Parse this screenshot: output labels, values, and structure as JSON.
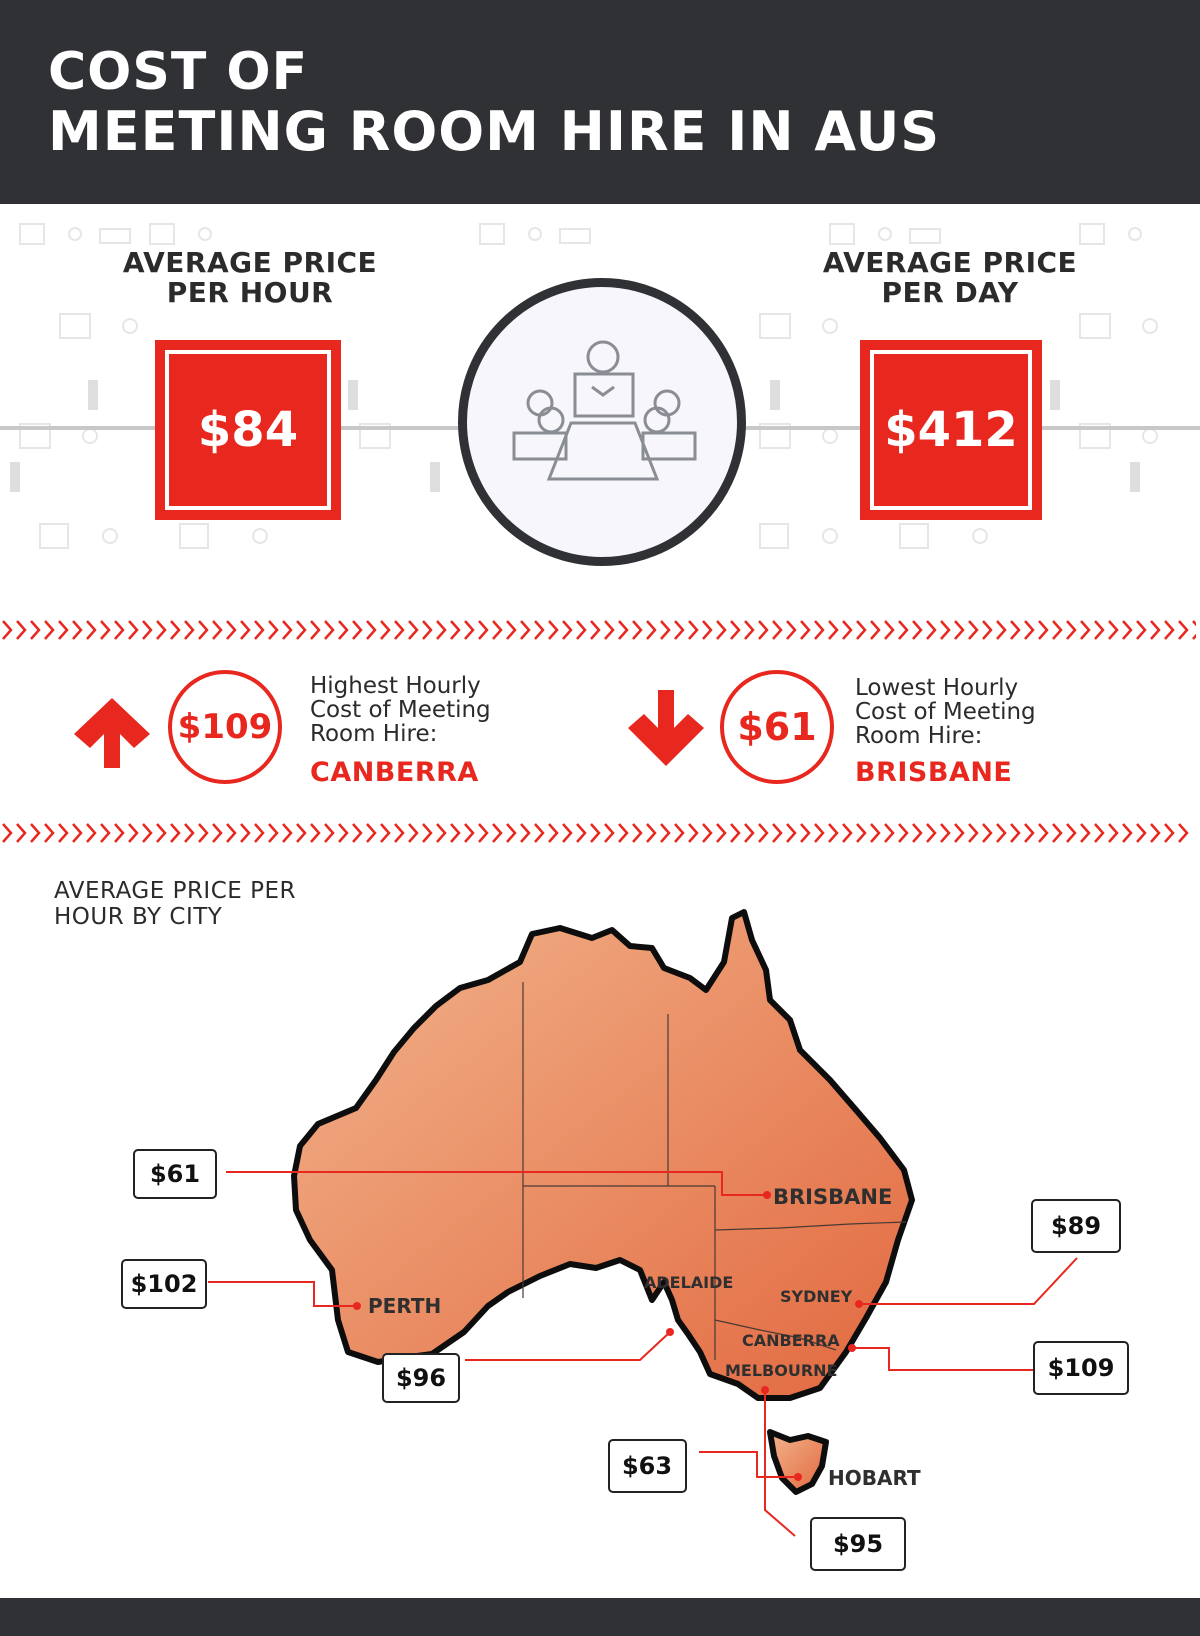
{
  "header": {
    "title_line1": "COST OF",
    "title_line2": "MEETING ROOM HIRE IN AUS"
  },
  "hourly": {
    "label_line1": "AVERAGE PRICE",
    "label_line2": "PER HOUR",
    "value": "$84"
  },
  "daily": {
    "label_line1": "AVERAGE PRICE",
    "label_line2": "PER DAY",
    "value": "$412"
  },
  "center_icon": "meeting-room-icon",
  "highest": {
    "value": "$109",
    "desc_line1": "Highest Hourly",
    "desc_line2": "Cost of Meeting",
    "desc_line3": "Room Hire:",
    "city": "CANBERRA",
    "icon": "arrow-up-icon"
  },
  "lowest": {
    "value": "$61",
    "desc_line1": "Lowest Hourly",
    "desc_line2": "Cost of Meeting",
    "desc_line3": "Room Hire:",
    "city": "BRISBANE",
    "icon": "arrow-down-icon"
  },
  "map": {
    "title_line1": "AVERAGE PRICE PER",
    "title_line2": "HOUR BY CITY",
    "cities": [
      {
        "name": "BRISBANE",
        "price": "$61"
      },
      {
        "name": "PERTH",
        "price": "$102"
      },
      {
        "name": "ADELAIDE",
        "price": "$96"
      },
      {
        "name": "SYDNEY",
        "price": "$89"
      },
      {
        "name": "CANBERRA",
        "price": "$109"
      },
      {
        "name": "MELBOURNE",
        "price": "$95"
      },
      {
        "name": "HOBART",
        "price": "$63"
      }
    ]
  },
  "colors": {
    "accent": "#e8281f",
    "dark": "#2f3135",
    "map_fill_light": "#f2b48c",
    "map_fill_dark": "#e2683f"
  }
}
